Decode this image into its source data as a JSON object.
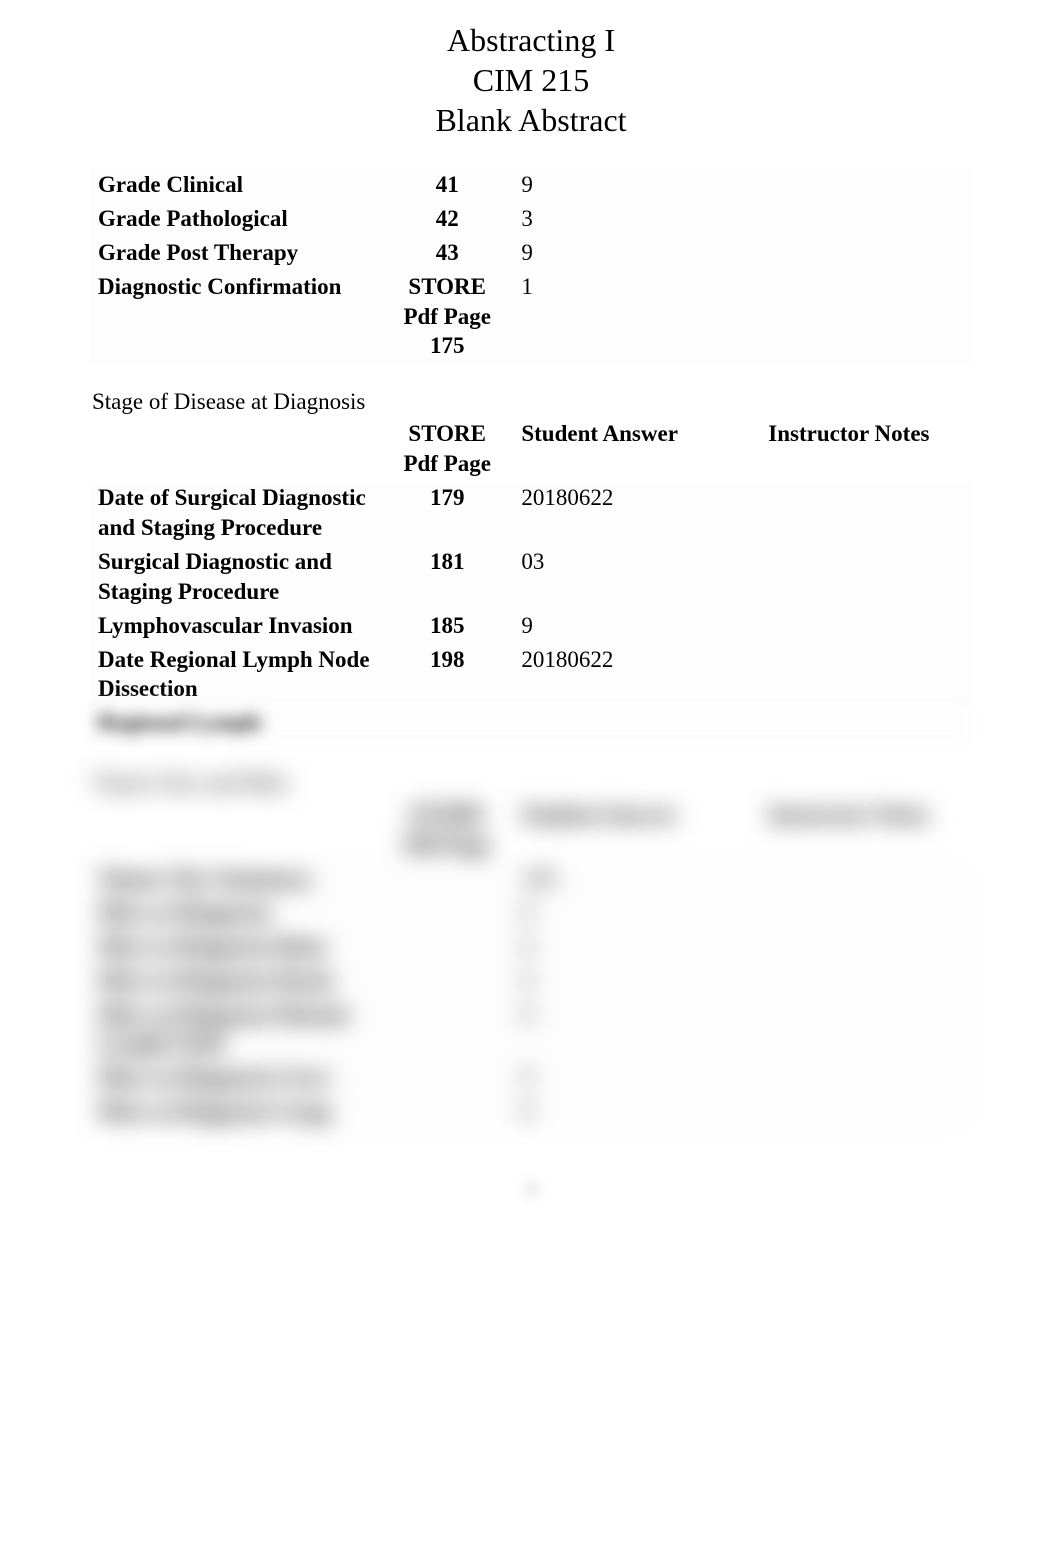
{
  "colors": {
    "background": "#ffffff",
    "text": "#000000",
    "muted": "#888888"
  },
  "typography": {
    "family": "Times New Roman",
    "title_fontsize": 32,
    "body_fontsize": 23
  },
  "header": {
    "line1": "Abstracting I",
    "line2": "CIM 215",
    "line3": "Blank Abstract"
  },
  "table1": {
    "columns": [
      "",
      "",
      "",
      ""
    ],
    "rows": [
      {
        "label": "Grade Clinical",
        "page": "41",
        "answer": "9",
        "notes": ""
      },
      {
        "label": "Grade Pathological",
        "page": "42",
        "answer": "3",
        "notes": ""
      },
      {
        "label": "Grade Post Therapy",
        "page": "43",
        "answer": "9",
        "notes": ""
      },
      {
        "label": "Diagnostic Confirmation",
        "page": "STORE Pdf Page 175",
        "answer": "1",
        "notes": ""
      }
    ]
  },
  "section2_title": "Stage of Disease at Diagnosis",
  "table2": {
    "headers": {
      "page": "STORE Pdf Page",
      "answer": "Student Answer",
      "notes": "Instructor Notes"
    },
    "rows": [
      {
        "label": "Date of Surgical Diagnostic and Staging Procedure",
        "page": "179",
        "answer": "20180622",
        "notes": ""
      },
      {
        "label": "Surgical Diagnostic and Staging Procedure",
        "page": "181",
        "answer": "03",
        "notes": ""
      },
      {
        "label": "Lymphovascular Invasion",
        "page": "185",
        "answer": "9",
        "notes": ""
      },
      {
        "label": "Date Regional Lymph Node Dissection",
        "page": "198",
        "answer": "20180622",
        "notes": ""
      },
      {
        "label": "Regional Lymph",
        "page": "",
        "answer": "",
        "notes": ""
      },
      {
        "label": "",
        "page": "",
        "answer": "",
        "notes": ""
      }
    ]
  },
  "section3_title": "Tumor Size and Mets",
  "table3": {
    "headers": {
      "page": "STORE Pdf Page",
      "answer": "Student Answer",
      "notes": "Instructor Notes"
    },
    "rows": [
      {
        "label": "Tumor Size Summary",
        "page": "",
        "answer": "100",
        "notes": ""
      },
      {
        "label": "Mets at Diagnosis",
        "page": "",
        "answer": "0",
        "notes": ""
      },
      {
        "label": "Mets at Diagnosis Bone",
        "page": "",
        "answer": "0",
        "notes": ""
      },
      {
        "label": "Mets at Diagnosis Brain",
        "page": "",
        "answer": "0",
        "notes": ""
      },
      {
        "label": "Mets at Diagnosis Distant Lymph Node",
        "page": "",
        "answer": "0",
        "notes": ""
      },
      {
        "label": "Mets at Diagnosis Liver",
        "page": "",
        "answer": "0",
        "notes": ""
      },
      {
        "label": "Mets at Diagnosis Lung",
        "page": "",
        "answer": "0",
        "notes": ""
      }
    ]
  },
  "page_number": "3"
}
